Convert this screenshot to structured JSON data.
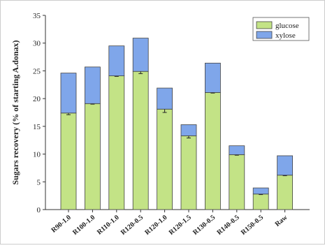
{
  "chart_data": {
    "type": "stacked-bar",
    "y_label": "Sugars recovery (% of starting A.donax)",
    "categories": [
      "R90-1.0",
      "R100-1.0",
      "R110-1.0",
      "R120-0.5",
      "R120-1.0",
      "R120-1.5",
      "R130-0.5",
      "R140-0.5",
      "R150-0.5",
      "Raw"
    ],
    "series": [
      {
        "name": "glucose",
        "color": "#c3e386",
        "values": [
          17.4,
          19.1,
          24.1,
          24.9,
          18.1,
          13.3,
          21.1,
          9.9,
          2.8,
          6.2
        ],
        "errors": [
          0.3,
          0.1,
          0.1,
          0.4,
          0.6,
          0.4,
          0.1,
          0.1,
          0.1,
          0.1
        ]
      },
      {
        "name": "xylose",
        "color": "#7fa6ea",
        "values": [
          7.2,
          6.6,
          5.4,
          6.0,
          3.8,
          2.0,
          5.3,
          1.6,
          1.1,
          3.5
        ]
      }
    ],
    "ylim": [
      0,
      35
    ],
    "yticks": [
      0,
      5,
      10,
      15,
      20,
      25,
      30,
      35
    ],
    "legend": "upper-right"
  }
}
